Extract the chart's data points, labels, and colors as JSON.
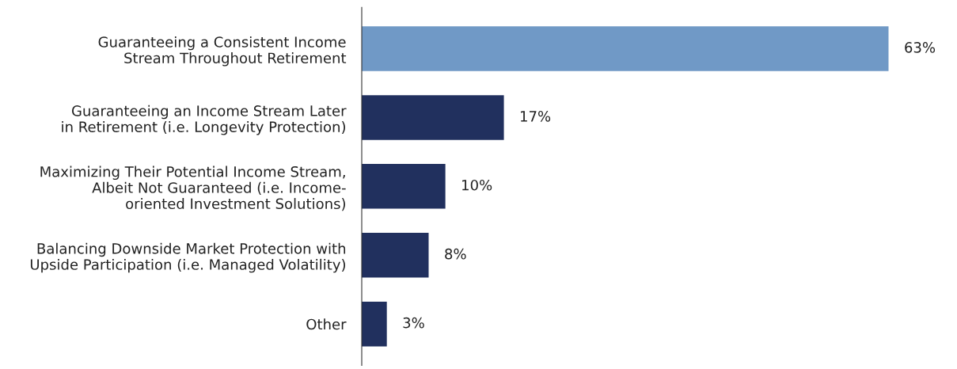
{
  "chart_data": {
    "type": "bar",
    "orientation": "horizontal",
    "categories": [
      "Guaranteeing a Consistent Income\nStream Throughout Retirement",
      "Guaranteeing an Income Stream Later\nin Retirement (i.e. Longevity Protection)",
      "Maximizing Their Potential Income Stream,\nAlbeit Not Guaranteed (i.e. Income-\noriented Investment Solutions)",
      "Balancing Downside Market Protection with\nUpside Participation (i.e. Managed Volatility)",
      "Other"
    ],
    "values": [
      63,
      17,
      10,
      8,
      3
    ],
    "colors": [
      "#7099c6",
      "#21305e",
      "#21305e",
      "#21305e",
      "#21305e"
    ],
    "value_labels": [
      "63%",
      "17%",
      "10%",
      "8%",
      "3%"
    ],
    "grid": false,
    "legend": false,
    "tick_labels": "y"
  }
}
